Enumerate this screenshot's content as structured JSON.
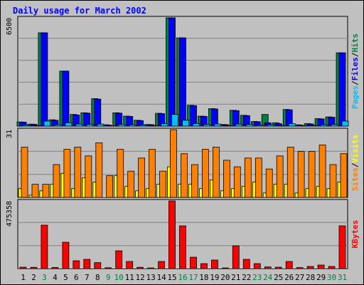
{
  "chart_data": {
    "type": "bar",
    "title": "Daily usage for March 2002",
    "categories": [
      "1",
      "2",
      "3",
      "4",
      "5",
      "6",
      "7",
      "8",
      "9",
      "10",
      "11",
      "12",
      "13",
      "14",
      "15",
      "16",
      "17",
      "18",
      "19",
      "20",
      "21",
      "22",
      "23",
      "24",
      "25",
      "26",
      "27",
      "28",
      "29",
      "30",
      "31"
    ],
    "weekend_days": [
      "3",
      "9",
      "10",
      "16",
      "17",
      "23",
      "24",
      "30",
      "31"
    ],
    "colors": {
      "hits": "#008040",
      "files": "#0000ff",
      "pages": "#00c0ff",
      "visits": "#ffff00",
      "sites": "#ff8000",
      "kbytes": "#ff0000",
      "title": "#0000ff",
      "weekend_label": "#008040",
      "weekday_label": "#000000",
      "background": "#c0c0c0",
      "grid": "#808080"
    },
    "panels": [
      {
        "id": "hits_files_pages",
        "ymax_label": "6500",
        "ymax": 6500,
        "right_label": [
          "Pages",
          "/",
          "Files",
          "/",
          "Hits"
        ],
        "right_label_colors": [
          "#00c0ff",
          "#000000",
          "#0000ff",
          "#000000",
          "#008040"
        ],
        "series": [
          {
            "name": "Hits",
            "values": [
              250,
              120,
              5600,
              380,
              3300,
              700,
              800,
              1650,
              80,
              800,
              600,
              350,
              100,
              770,
              6500,
              5300,
              1250,
              600,
              1050,
              100,
              950,
              650,
              280,
              700,
              200,
              1000,
              80,
              150,
              450,
              550,
              4400
            ]
          },
          {
            "name": "Files",
            "values": [
              240,
              110,
              5600,
              350,
              3300,
              670,
              780,
              1620,
              70,
              780,
              580,
              330,
              90,
              750,
              6500,
              5300,
              1230,
              580,
              1030,
              90,
              930,
              630,
              260,
              200,
              150,
              980,
              70,
              130,
              430,
              530,
              4400
            ]
          },
          {
            "name": "Pages",
            "values": [
              60,
              30,
              300,
              80,
              200,
              120,
              100,
              120,
              20,
              100,
              80,
              60,
              30,
              150,
              700,
              350,
              150,
              100,
              130,
              30,
              120,
              100,
              50,
              80,
              40,
              150,
              20,
              40,
              80,
              100,
              300
            ]
          }
        ]
      },
      {
        "id": "visits_sites",
        "ymax_label": "31",
        "ymax": 31,
        "right_label": [
          "Sites",
          "/",
          "Visits"
        ],
        "right_label_colors": [
          "#ff8000",
          "#000000",
          "#ffff00"
        ],
        "series": [
          {
            "name": "Visits",
            "values": [
              4,
              1,
              3,
              6,
              11,
              4,
              9,
              7,
              0,
              10,
              5,
              3,
              4,
              6,
              14,
              6,
              6,
              4,
              8,
              3,
              4,
              5,
              7,
              2,
              6,
              6,
              2,
              4,
              5,
              4,
              7
            ]
          },
          {
            "name": "Sites",
            "values": [
              23,
              6,
              6,
              15,
              22,
              23,
              19,
              25,
              10,
              22,
              12,
              18,
              22,
              12,
              31,
              20,
              15,
              22,
              23,
              17,
              14,
              18,
              18,
              13,
              19,
              23,
              21,
              21,
              24,
              15,
              20
            ]
          }
        ]
      },
      {
        "id": "kbytes",
        "ymax_label": "475358",
        "ymax": 475358,
        "right_label": [
          "KBytes"
        ],
        "right_label_colors": [
          "#ff0000"
        ],
        "series": [
          {
            "name": "KBytes",
            "values": [
              10000,
              9000,
              305000,
              8000,
              185000,
              55000,
              65000,
              42000,
              6000,
              125000,
              50000,
              9000,
              5000,
              50000,
              475358,
              300000,
              80000,
              35000,
              60000,
              5000,
              160000,
              65000,
              35000,
              12000,
              10000,
              50000,
              7000,
              15000,
              25000,
              15000,
              300000
            ]
          }
        ]
      }
    ]
  }
}
